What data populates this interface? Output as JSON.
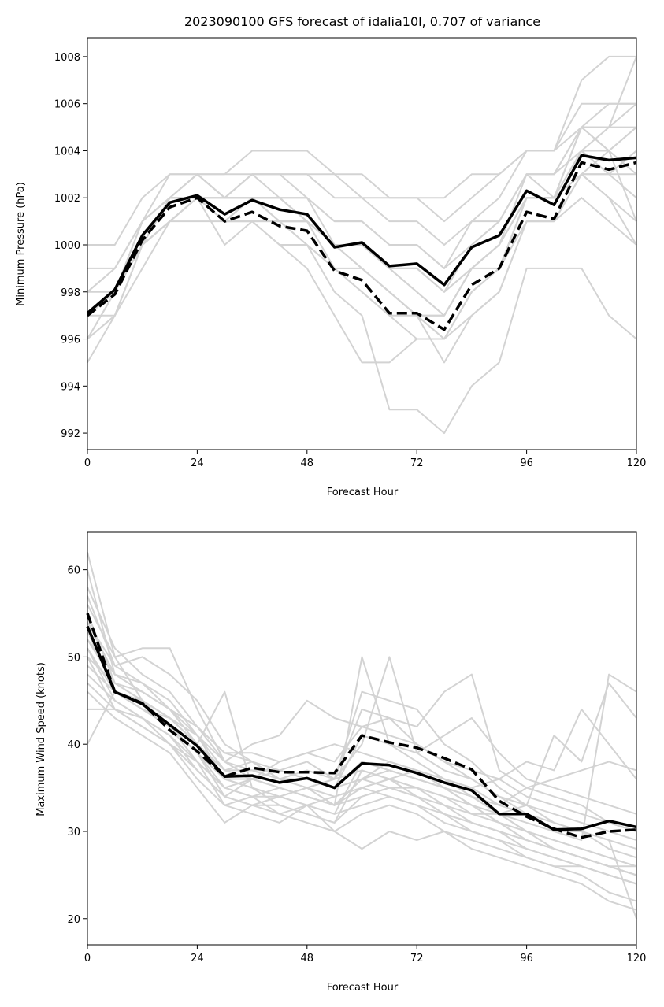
{
  "chart_data": [
    {
      "type": "line",
      "title": "2023090100 GFS forecast of idalia10l, 0.707 of variance",
      "xlabel": "Forecast Hour",
      "ylabel": "Minimum Pressure (hPa)",
      "xlim": [
        0,
        120
      ],
      "ylim": [
        991.3,
        1008.8
      ],
      "xticks": [
        0,
        24,
        48,
        72,
        96,
        120
      ],
      "yticks": [
        992,
        994,
        996,
        998,
        1000,
        1002,
        1004,
        1006,
        1008
      ],
      "grid": false,
      "colors": {
        "ensemble": "#d3d3d3",
        "mean": "#000000"
      },
      "x": [
        0,
        6,
        12,
        18,
        24,
        30,
        36,
        42,
        48,
        54,
        60,
        66,
        72,
        78,
        84,
        90,
        96,
        102,
        108,
        114,
        120
      ],
      "ensemble": [
        [
          997,
          998,
          1000,
          1002,
          1002,
          1001,
          1002,
          1001,
          1001,
          1000,
          1000,
          999,
          999,
          998,
          1000,
          1001,
          1003,
          1002,
          1004,
          1004,
          1005
        ],
        [
          996,
          997,
          1000,
          1001,
          1002,
          1000,
          1001,
          1000,
          999,
          997,
          995,
          995,
          996,
          996,
          998,
          999,
          1002,
          1002,
          1003,
          1003,
          1004
        ],
        [
          998,
          999,
          1001,
          1002,
          1003,
          1002,
          1003,
          1002,
          1002,
          1001,
          1001,
          1000,
          1000,
          999,
          1001,
          1001,
          1003,
          1003,
          1005,
          1006,
          1006
        ],
        [
          997,
          997,
          999,
          1001,
          1002,
          1001,
          1001,
          1001,
          1000,
          998,
          997,
          993,
          993,
          992,
          994,
          995,
          999,
          999,
          999,
          997,
          996
        ],
        [
          996,
          998,
          1000,
          1002,
          1002,
          1001,
          1002,
          1002,
          1002,
          1000,
          999,
          998,
          997,
          996,
          997,
          998,
          1001,
          1001,
          1003,
          1004,
          1003
        ],
        [
          997,
          998,
          1001,
          1002,
          1003,
          1002,
          1002,
          1002,
          1001,
          1000,
          1000,
          999,
          999,
          998,
          999,
          1000,
          1002,
          1002,
          1004,
          1005,
          1008
        ],
        [
          995,
          997,
          1000,
          1001,
          1002,
          1002,
          1003,
          1003,
          1003,
          1002,
          1002,
          1001,
          1001,
          1000,
          1001,
          1002,
          1004,
          1004,
          1005,
          1004,
          1001
        ],
        [
          996,
          998,
          1000,
          1001,
          1001,
          1001,
          1001,
          1000,
          1000,
          999,
          999,
          998,
          997,
          997,
          999,
          1000,
          1002,
          1002,
          1003,
          1002,
          1000
        ],
        [
          997,
          998,
          1001,
          1002,
          1003,
          1002,
          1002,
          1002,
          1001,
          1000,
          1000,
          999,
          998,
          997,
          999,
          1000,
          1003,
          1003,
          1004,
          1003,
          1004
        ],
        [
          998,
          999,
          1001,
          1002,
          1002,
          1002,
          1002,
          1001,
          1001,
          1000,
          1000,
          999,
          998,
          997,
          999,
          1000,
          1002,
          1002,
          1005,
          1005,
          1005
        ],
        [
          999,
          999,
          1001,
          1003,
          1003,
          1003,
          1004,
          1004,
          1004,
          1003,
          1002,
          1002,
          1002,
          1001,
          1002,
          1003,
          1004,
          1004,
          1006,
          1006,
          1006
        ],
        [
          997,
          998,
          1000,
          1001,
          1002,
          1001,
          1001,
          1001,
          1000,
          999,
          998,
          997,
          997,
          996,
          998,
          999,
          1001,
          1001,
          1002,
          1001,
          1000
        ],
        [
          1000,
          1000,
          1002,
          1003,
          1003,
          1003,
          1003,
          1003,
          1003,
          1003,
          1003,
          1002,
          1002,
          1002,
          1003,
          1003,
          1004,
          1004,
          1007,
          1008,
          1008
        ],
        [
          997,
          998,
          1000,
          1002,
          1002,
          1002,
          1002,
          1002,
          1001,
          1000,
          999,
          998,
          997,
          995,
          997,
          998,
          1001,
          1001,
          1003,
          1003,
          1003
        ],
        [
          996,
          997,
          1000,
          1001,
          1002,
          1001,
          1002,
          1001,
          1001,
          999,
          998,
          997,
          996,
          996,
          998,
          999,
          1002,
          1002,
          1005,
          1005,
          1006
        ],
        [
          997,
          998,
          1000,
          1002,
          1002,
          1001,
          1002,
          1001,
          1001,
          1000,
          999,
          998,
          997,
          997,
          999,
          999,
          1002,
          1002,
          1004,
          1003,
          1002
        ],
        [
          998,
          998,
          1000,
          1002,
          1003,
          1002,
          1003,
          1003,
          1002,
          1001,
          1001,
          1000,
          1000,
          999,
          1000,
          1001,
          1003,
          1003,
          1005,
          1004,
          1005
        ],
        [
          997,
          998,
          1000,
          1001,
          1002,
          1001,
          1002,
          1002,
          1001,
          1000,
          1000,
          999,
          999,
          998,
          999,
          1000,
          1002,
          1002,
          1003,
          1002,
          1001
        ]
      ],
      "series": [
        {
          "style": "solid",
          "values": [
            997.1,
            998.1,
            1000.4,
            1001.8,
            1002.1,
            1001.3,
            1001.9,
            1001.5,
            1001.3,
            999.9,
            1000.1,
            999.1,
            999.2,
            998.3,
            999.9,
            1000.4,
            1002.3,
            1001.7,
            1003.8,
            1003.6,
            1003.7
          ]
        },
        {
          "style": "dashed",
          "values": [
            997.0,
            997.9,
            1000.2,
            1001.6,
            1002.0,
            1001.0,
            1001.4,
            1000.8,
            1000.6,
            998.9,
            998.5,
            997.1,
            997.1,
            996.4,
            998.3,
            999.0,
            1001.4,
            1001.1,
            1003.5,
            1003.2,
            1003.5
          ]
        }
      ]
    },
    {
      "type": "line",
      "title": "",
      "xlabel": "Forecast Hour",
      "ylabel": "Maximum Wind Speed (knots)",
      "xlim": [
        0,
        120
      ],
      "ylim": [
        17,
        64.3
      ],
      "xticks": [
        0,
        24,
        48,
        72,
        96,
        120
      ],
      "yticks": [
        20,
        30,
        40,
        50,
        60
      ],
      "grid": false,
      "colors": {
        "ensemble": "#d3d3d3",
        "mean": "#000000"
      },
      "x": [
        0,
        6,
        12,
        18,
        24,
        30,
        36,
        42,
        48,
        54,
        60,
        66,
        72,
        78,
        84,
        90,
        96,
        102,
        108,
        114,
        120
      ],
      "ensemble": [
        [
          62,
          50,
          45,
          42,
          38,
          35,
          34,
          32,
          33,
          30,
          28,
          30,
          29,
          30,
          28,
          27,
          26,
          25,
          24,
          22,
          21
        ],
        [
          60,
          48,
          46,
          44,
          40,
          37,
          38,
          36,
          35,
          33,
          50,
          40,
          38,
          36,
          34,
          32,
          30,
          28,
          27,
          26,
          25
        ],
        [
          58,
          51,
          48,
          46,
          42,
          38,
          36,
          35,
          34,
          33,
          34,
          35,
          34,
          32,
          30,
          29,
          28,
          27,
          26,
          25,
          24
        ],
        [
          57,
          49,
          47,
          45,
          41,
          36,
          35,
          33,
          32,
          31,
          37,
          36,
          35,
          34,
          33,
          31,
          29,
          28,
          27,
          26,
          26
        ],
        [
          56,
          50,
          51,
          51,
          44,
          38,
          40,
          41,
          45,
          43,
          42,
          43,
          40,
          38,
          36,
          34,
          32,
          30,
          29,
          48,
          46
        ],
        [
          55,
          47,
          45,
          43,
          40,
          36,
          35,
          34,
          33,
          32,
          33,
          34,
          33,
          31,
          30,
          29,
          27,
          26,
          25,
          23,
          22
        ],
        [
          54,
          49,
          50,
          48,
          45,
          40,
          38,
          36,
          37,
          36,
          46,
          45,
          44,
          40,
          38,
          35,
          33,
          31,
          30,
          28,
          27
        ],
        [
          53,
          46,
          44,
          42,
          39,
          34,
          33,
          32,
          31,
          30,
          32,
          33,
          32,
          30,
          29,
          28,
          27,
          26,
          26,
          25,
          24
        ],
        [
          52,
          48,
          46,
          44,
          42,
          39,
          38,
          37,
          36,
          35,
          36,
          38,
          37,
          35,
          34,
          32,
          30,
          29,
          28,
          27,
          26
        ],
        [
          51,
          45,
          43,
          41,
          38,
          33,
          32,
          31,
          33,
          34,
          35,
          36,
          34,
          33,
          31,
          30,
          29,
          28,
          27,
          26,
          25
        ],
        [
          50,
          47,
          45,
          43,
          40,
          46,
          35,
          34,
          35,
          36,
          37,
          36,
          35,
          34,
          32,
          31,
          30,
          29,
          28,
          27,
          26
        ],
        [
          50,
          44,
          43,
          41,
          37,
          34,
          33,
          33,
          32,
          31,
          34,
          35,
          34,
          32,
          31,
          30,
          28,
          27,
          26,
          25,
          24
        ],
        [
          49,
          46,
          44,
          42,
          39,
          35,
          34,
          34,
          33,
          32,
          38,
          37,
          36,
          35,
          33,
          31,
          29,
          28,
          27,
          26,
          25
        ],
        [
          48,
          45,
          43,
          40,
          37,
          34,
          36,
          38,
          39,
          40,
          39,
          38,
          37,
          36,
          35,
          33,
          32,
          31,
          30,
          29,
          28
        ],
        [
          47,
          44,
          42,
          40,
          36,
          33,
          34,
          35,
          34,
          33,
          35,
          34,
          33,
          32,
          31,
          30,
          29,
          28,
          27,
          26,
          25
        ],
        [
          46,
          43,
          41,
          39,
          35,
          31,
          33,
          34,
          35,
          36,
          40,
          50,
          39,
          37,
          36,
          34,
          33,
          32,
          31,
          30,
          29
        ],
        [
          44,
          44,
          42,
          40,
          38,
          35,
          36,
          37,
          38,
          36,
          44,
          43,
          42,
          46,
          48,
          37,
          35,
          34,
          33,
          31,
          30
        ],
        [
          40,
          46,
          44,
          43,
          41,
          37,
          36,
          35,
          34,
          33,
          36,
          37,
          36,
          35,
          34,
          33,
          35,
          36,
          37,
          38,
          37
        ],
        [
          55,
          47,
          46,
          44,
          41,
          38,
          37,
          36,
          35,
          34,
          35,
          36,
          37,
          36,
          35,
          36,
          38,
          37,
          44,
          40,
          36
        ],
        [
          53,
          46,
          45,
          43,
          40,
          37,
          37,
          36,
          36,
          35,
          41,
          40,
          39,
          41,
          43,
          39,
          36,
          35,
          34,
          33,
          32
        ],
        [
          54,
          48,
          47,
          44,
          42,
          39,
          39,
          38,
          39,
          38,
          42,
          41,
          40,
          38,
          37,
          36,
          34,
          33,
          32,
          31,
          30
        ],
        [
          51,
          46,
          44,
          42,
          39,
          36,
          36,
          35,
          34,
          33,
          36,
          35,
          35,
          33,
          32,
          32,
          33,
          41,
          38,
          47,
          43
        ],
        [
          52,
          47,
          45,
          43,
          40,
          37,
          37,
          37,
          36,
          35,
          38,
          37,
          36,
          35,
          33,
          32,
          31,
          30,
          30,
          29,
          20
        ]
      ],
      "series": [
        {
          "style": "solid",
          "values": [
            53.5,
            46.0,
            44.6,
            42.2,
            39.8,
            36.3,
            36.4,
            35.6,
            36.1,
            35.0,
            37.8,
            37.6,
            36.7,
            35.6,
            34.7,
            32.0,
            32.0,
            30.2,
            30.3,
            31.2,
            30.5
          ]
        },
        {
          "style": "dashed",
          "values": [
            55.0,
            46.0,
            44.7,
            41.6,
            39.2,
            36.3,
            37.3,
            36.8,
            36.8,
            36.7,
            41.0,
            40.2,
            39.6,
            38.4,
            37.1,
            33.5,
            31.7,
            30.3,
            29.3,
            30.0,
            30.2
          ]
        }
      ]
    }
  ]
}
